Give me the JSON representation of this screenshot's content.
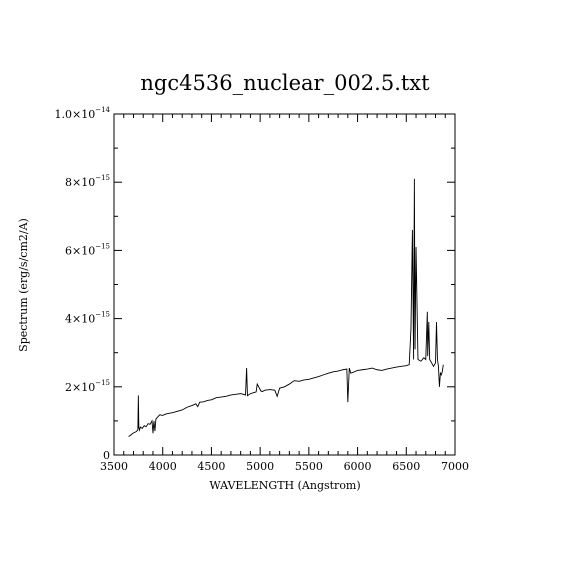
{
  "chart_data": {
    "type": "line",
    "title": "ngc4536_nuclear_002.5.txt",
    "xlabel": "WAVELENGTH (Angstrom)",
    "ylabel": "Spectrum (erg/s/cm2/A)",
    "xlim": [
      3500,
      7000
    ],
    "ylim": [
      0,
      1e-14
    ],
    "grid": false,
    "x_ticks": [
      {
        "value": 3500,
        "label": "3500"
      },
      {
        "value": 4000,
        "label": "4000"
      },
      {
        "value": 4500,
        "label": "4500"
      },
      {
        "value": 5000,
        "label": "5000"
      },
      {
        "value": 5500,
        "label": "5500"
      },
      {
        "value": 6000,
        "label": "6000"
      },
      {
        "value": 6500,
        "label": "6500"
      },
      {
        "value": 7000,
        "label": "7000"
      }
    ],
    "y_ticks": [
      {
        "value": 0,
        "mantissa": "0",
        "exponent": ""
      },
      {
        "value": 2e-15,
        "mantissa": "2×10",
        "exponent": "−15"
      },
      {
        "value": 4e-15,
        "mantissa": "4×10",
        "exponent": "−15"
      },
      {
        "value": 6e-15,
        "mantissa": "6×10",
        "exponent": "−15"
      },
      {
        "value": 8e-15,
        "mantissa": "8×10",
        "exponent": "−15"
      },
      {
        "value": 1e-14,
        "mantissa": "1.0×10",
        "exponent": "−14"
      }
    ],
    "series": [
      {
        "x": [
          3650,
          3670,
          3690,
          3710,
          3730,
          3745,
          3750,
          3755,
          3762,
          3770,
          3790,
          3810,
          3830,
          3850,
          3870,
          3890,
          3900,
          3910,
          3920,
          3930,
          3950,
          3970,
          4000,
          4030,
          4060,
          4100,
          4150,
          4200,
          4250,
          4300,
          4340,
          4360,
          4380,
          4420,
          4460,
          4500,
          4550,
          4600,
          4650,
          4700,
          4750,
          4800,
          4850,
          4861,
          4870,
          4900,
          4959,
          4970,
          5007,
          5020,
          5050,
          5100,
          5150,
          5175,
          5200,
          5250,
          5300,
          5350,
          5400,
          5450,
          5500,
          5550,
          5600,
          5650,
          5700,
          5750,
          5800,
          5850,
          5890,
          5900,
          5915,
          5930,
          5950,
          6000,
          6050,
          6100,
          6150,
          6200,
          6250,
          6300,
          6350,
          6400,
          6450,
          6500,
          6530,
          6548,
          6563,
          6575,
          6583,
          6590,
          6600,
          6620,
          6650,
          6680,
          6700,
          6716,
          6720,
          6731,
          6740,
          6760,
          6780,
          6800,
          6810,
          6820,
          6830,
          6840,
          6850,
          6860,
          6870,
          6880
        ],
        "y": [
          5.4e-16,
          5.8e-16,
          6.3e-16,
          6.6e-16,
          6.9e-16,
          7.4e-16,
          1.75e-15,
          8e-16,
          7.3e-16,
          8.2e-16,
          7.8e-16,
          8.6e-16,
          8.3e-16,
          9.2e-16,
          9e-16,
          1e-15,
          6.4e-16,
          1e-15,
          7e-16,
          1.05e-15,
          1.12e-15,
          1.18e-15,
          1.16e-15,
          1.2e-15,
          1.22e-15,
          1.24e-15,
          1.28e-15,
          1.32e-15,
          1.4e-15,
          1.45e-15,
          1.5e-15,
          1.42e-15,
          1.55e-15,
          1.56e-15,
          1.6e-15,
          1.62e-15,
          1.68e-15,
          1.7e-15,
          1.72e-15,
          1.76e-15,
          1.78e-15,
          1.8e-15,
          1.76e-15,
          2.55e-15,
          1.74e-15,
          1.8e-15,
          1.85e-15,
          2.08e-15,
          1.88e-15,
          1.86e-15,
          1.9e-15,
          1.92e-15,
          1.9e-15,
          1.72e-15,
          1.96e-15,
          2e-15,
          2.08e-15,
          2.18e-15,
          2.16e-15,
          2.2e-15,
          2.22e-15,
          2.26e-15,
          2.3e-15,
          2.35e-15,
          2.4e-15,
          2.44e-15,
          2.46e-15,
          2.5e-15,
          2.52e-15,
          1.55e-15,
          2.55e-15,
          2.4e-15,
          2.42e-15,
          2.48e-15,
          2.5e-15,
          2.52e-15,
          2.55e-15,
          2.5e-15,
          2.48e-15,
          2.52e-15,
          2.55e-15,
          2.58e-15,
          2.6e-15,
          2.62e-15,
          2.65e-15,
          3.7e-15,
          6.6e-15,
          2.8e-15,
          8.1e-15,
          3.1e-15,
          6.1e-15,
          2.8e-15,
          2.75e-15,
          2.85e-15,
          2.8e-15,
          4.2e-15,
          2.9e-15,
          3.9e-15,
          2.8e-15,
          2.7e-15,
          2.6e-15,
          2.7e-15,
          3.9e-15,
          2.8e-15,
          2.6e-15,
          2e-15,
          2.4e-15,
          2.35e-15,
          2.45e-15,
          2.65e-15
        ]
      }
    ]
  }
}
